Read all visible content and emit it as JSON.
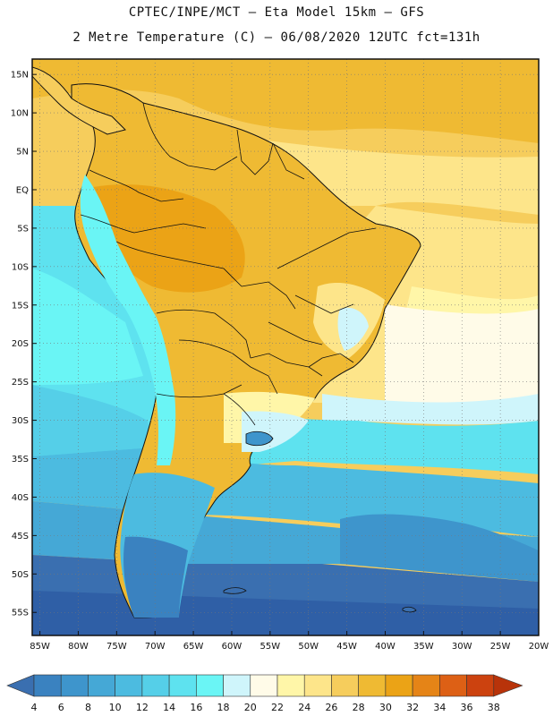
{
  "header": {
    "line1": "CPTEC/INPE/MCT –  Eta Model 15km – GFS",
    "line2": "2 Metre Temperature (C) – 06/08/2020 12UTC fct=131h"
  },
  "map": {
    "lon_range": [
      -86,
      -20
    ],
    "lat_range": [
      -58,
      17
    ],
    "lon_ticks": [
      "85W",
      "80W",
      "75W",
      "70W",
      "65W",
      "60W",
      "55W",
      "50W",
      "45W",
      "40W",
      "35W",
      "30W",
      "25W",
      "20W"
    ],
    "lat_ticks": [
      "15N",
      "10N",
      "5N",
      "EQ",
      "5S",
      "10S",
      "15S",
      "20S",
      "25S",
      "30S",
      "35S",
      "40S",
      "45S",
      "50S",
      "55S"
    ],
    "lat_values": [
      15,
      10,
      5,
      0,
      -5,
      -10,
      -15,
      -20,
      -25,
      -30,
      -35,
      -40,
      -45,
      -50,
      -55
    ],
    "lon_values": [
      -85,
      -80,
      -75,
      -70,
      -65,
      -60,
      -55,
      -50,
      -45,
      -40,
      -35,
      -30,
      -25,
      -20
    ],
    "grid": "dotted"
  },
  "colorbar": {
    "labels": [
      "4",
      "6",
      "8",
      "10",
      "12",
      "14",
      "16",
      "18",
      "20",
      "22",
      "24",
      "26",
      "28",
      "30",
      "32",
      "34",
      "36",
      "38"
    ],
    "colors": [
      "#3a6fb0",
      "#3a82c0",
      "#3e95cc",
      "#45a8d6",
      "#4cbbe0",
      "#55cfe8",
      "#5ee2ef",
      "#6af5f5",
      "#cff5fb",
      "#fffbe8",
      "#fff6a8",
      "#fde58a",
      "#f6cd5c",
      "#efba33",
      "#eba316",
      "#e58417",
      "#dd6015",
      "#cc420f",
      "#b8330a"
    ]
  },
  "palette": {
    "deep_blue": "#2f5fa6",
    "mid_blue": "#3a82c0",
    "cyan": "#5ee2ef",
    "light_cyan": "#cff5fb",
    "cream": "#fffbe8",
    "yellow": "#fde58a",
    "light_orange": "#f6cd5c",
    "orange": "#efba33",
    "dark_orange": "#eba316"
  }
}
